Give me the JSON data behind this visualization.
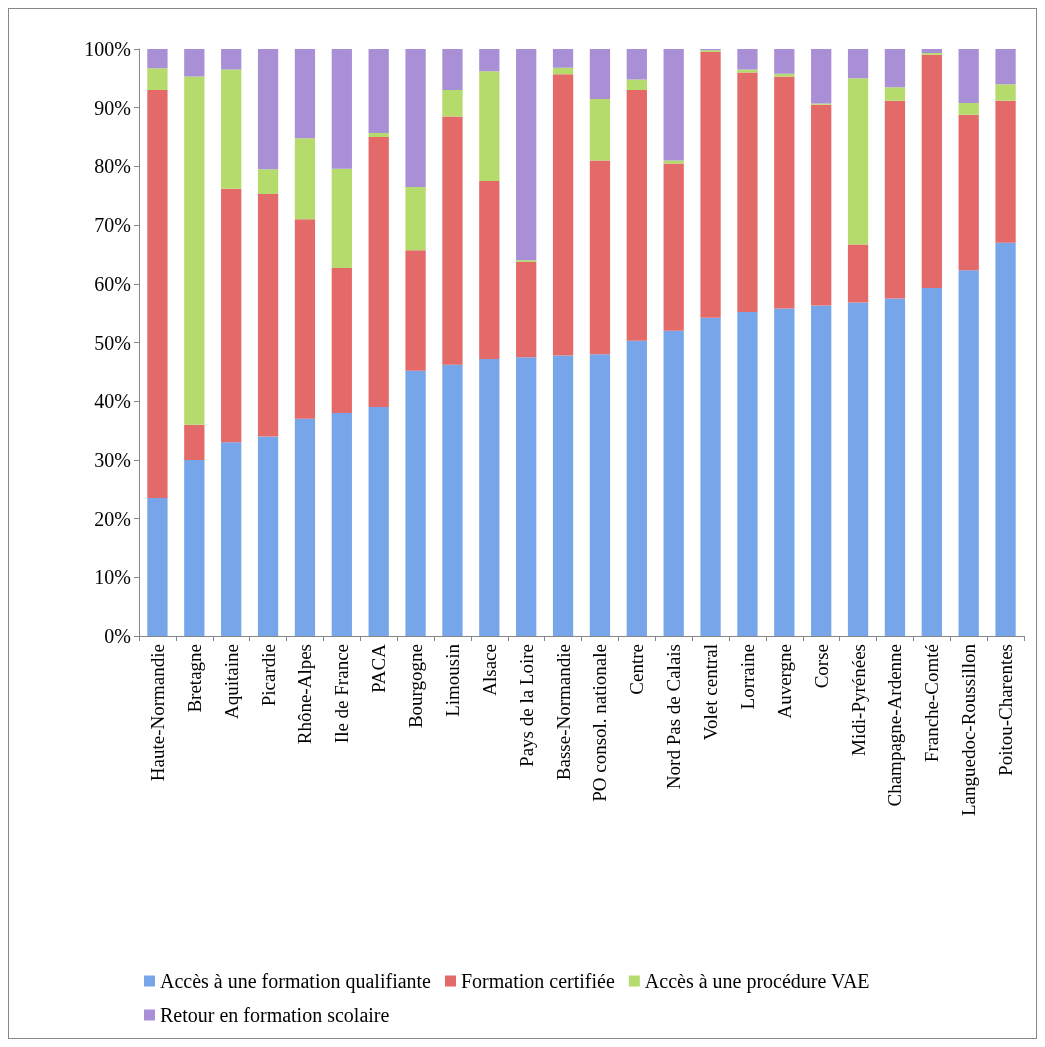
{
  "chart_data": {
    "type": "bar",
    "stacked": true,
    "legend": "bottom",
    "grid": false,
    "categories": [
      "Haute-Normandie",
      "Bretagne",
      "Aquitaine",
      "Picardie",
      "Rhône-Alpes",
      "Ile de France",
      "PACA",
      "Bourgogne",
      "Limousin",
      "Alsace",
      "Pays de la Loire",
      "Basse-Normandie",
      "PO consol. nationale",
      "Centre",
      "Nord Pas de Calais",
      "Volet central",
      "Lorraine",
      "Auvergne",
      "Corse",
      "Midi-Pyrénées",
      "Champagne-Ardenne",
      "Franche-Comté",
      "Languedoc-Roussillon",
      "Poitou-Charentes"
    ],
    "ylim": [
      0,
      100
    ],
    "yticks": [
      {
        "value": 0,
        "label": "0%"
      },
      {
        "value": 10,
        "label": "10%"
      },
      {
        "value": 20,
        "label": "20%"
      },
      {
        "value": 30,
        "label": "30%"
      },
      {
        "value": 40,
        "label": "40%"
      },
      {
        "value": 50,
        "label": "50%"
      },
      {
        "value": 60,
        "label": "60%"
      },
      {
        "value": 70,
        "label": "70%"
      },
      {
        "value": 80,
        "label": "80%"
      },
      {
        "value": 90,
        "label": "90%"
      },
      {
        "value": 100,
        "label": "100%"
      }
    ],
    "series": [
      {
        "name": "Accès à une formation qualifiante",
        "color": "#76a5ea",
        "values": [
          23.5,
          30,
          33,
          34,
          37,
          38,
          39,
          45.2,
          46.2,
          47.2,
          47.5,
          47.8,
          48,
          50.3,
          52,
          54.2,
          55.2,
          55.8,
          56.3,
          56.8,
          57.5,
          59.3,
          62.3,
          67
        ]
      },
      {
        "name": "Formation certifiée",
        "color": "#e46a6a",
        "values": [
          69.5,
          6,
          43.2,
          41.3,
          34,
          24.7,
          46,
          20.5,
          42.3,
          30.3,
          16.2,
          47.9,
          33,
          42.7,
          28.5,
          45.3,
          40.8,
          39.5,
          34.2,
          9.9,
          33.7,
          39.7,
          26.5,
          24.2
        ]
      },
      {
        "name": "Accès à une procédure VAE",
        "color": "#b4db6b",
        "values": [
          3.7,
          59.3,
          20.3,
          4.2,
          13.8,
          16.9,
          0.7,
          10.8,
          4.5,
          18.7,
          0.3,
          1.1,
          10.5,
          1.8,
          0.5,
          0.3,
          0.5,
          0.5,
          0.2,
          28.3,
          2.3,
          0.3,
          2,
          2.8
        ]
      },
      {
        "name": "Retour en formation scolaire",
        "color": "#a88fd6",
        "values": [
          3.3,
          4.7,
          3.5,
          20.5,
          15.2,
          20.4,
          14.3,
          23.5,
          7,
          3.8,
          36,
          3.2,
          8.5,
          5.2,
          19,
          0.2,
          3.5,
          4.2,
          9.3,
          5,
          6.5,
          0.7,
          9.2,
          6
        ]
      }
    ]
  }
}
